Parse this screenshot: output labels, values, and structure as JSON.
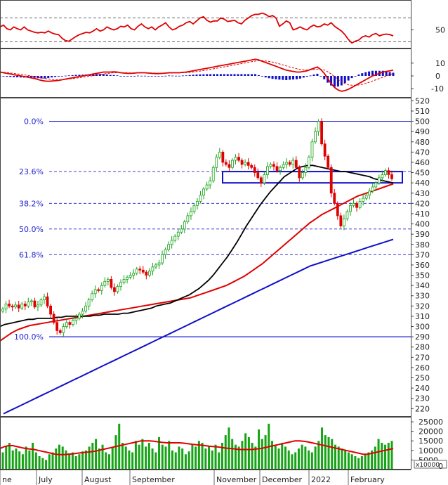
{
  "colors": {
    "up": "#16a316",
    "down": "#e00000",
    "ma_short": "#000000",
    "ma_mid": "#e00000",
    "ma_long": "#1010c8",
    "fib": "#1f1fd0",
    "box": "#1010c8",
    "rsi": "#e00000",
    "macd": "#e00000",
    "macd_signal": "#e00000",
    "histogram": "#1010c8",
    "volume": "#16a316",
    "volume_ma": "#e00000"
  },
  "chart_data": [
    {
      "type": "line",
      "panel": "rsi",
      "y_tick_labels": [
        "50"
      ],
      "guide_levels": [
        30,
        70
      ],
      "series": [
        {
          "values": [
            55,
            58,
            52,
            50,
            55,
            52,
            50,
            55,
            50,
            48,
            46,
            45,
            46,
            45,
            48,
            45,
            43,
            42,
            36,
            32,
            31,
            35,
            39,
            42,
            44,
            46,
            45,
            48,
            52,
            48,
            50,
            55,
            52,
            50,
            52,
            56,
            55,
            58,
            52,
            50,
            56,
            60,
            55,
            52,
            55,
            50,
            55,
            58,
            62,
            55,
            50,
            52,
            56,
            58,
            62,
            64,
            60,
            65,
            70,
            72,
            66,
            63,
            65,
            65,
            70,
            68,
            64,
            65,
            66,
            62,
            60,
            66,
            70,
            74,
            76,
            76,
            78,
            76,
            72,
            74,
            70,
            56,
            60,
            65,
            62,
            50,
            52,
            55,
            52,
            50,
            55,
            58,
            55,
            56,
            60,
            58,
            62,
            56,
            52,
            48,
            42,
            34,
            28,
            31,
            33,
            38,
            40,
            38,
            42,
            44,
            40,
            42,
            43,
            42,
            40
          ]
        }
      ]
    },
    {
      "type": "line",
      "panel": "macd",
      "y_tick_labels": [
        "10",
        "0",
        "-10"
      ],
      "series": [
        {
          "values": [
            3.0,
            2.5,
            2.0,
            1.5,
            1.0,
            0.5,
            0.0,
            -0.5,
            -1.0,
            -1.5,
            -2.0,
            -2.8,
            -3.5,
            -4.0,
            -4.2,
            -4.0,
            -3.8,
            -3.5,
            -3.0,
            -2.5,
            -2.0,
            -1.5,
            -1.0,
            -0.5,
            0.0,
            0.5,
            1.0,
            1.5,
            2.0,
            2.5,
            3.0,
            3.0,
            3.0,
            3.2,
            3.0,
            2.5,
            2.2,
            2.0,
            2.0,
            2.2,
            2.5,
            2.5,
            2.5,
            2.2,
            2.0,
            1.8,
            1.8,
            2.0,
            2.2,
            2.5,
            2.5,
            2.5,
            2.5,
            2.8,
            3.0,
            3.5,
            4.0,
            4.5,
            5.0,
            5.5,
            6.0,
            6.5,
            7.0,
            7.5,
            8.0,
            8.5,
            9.0,
            9.5,
            10.0,
            10.5,
            11.0,
            11.5,
            12.0,
            12.5,
            13.0,
            12.5,
            11.5,
            10.5,
            9.5,
            8.5,
            7.5,
            6.5,
            5.5,
            4.5,
            4.0,
            3.5,
            3.0,
            3.0,
            3.5,
            4.0,
            5.0,
            6.0,
            7.0,
            5.0,
            2.0,
            -2.0,
            -6.0,
            -9.0,
            -11.0,
            -12.0,
            -11.5,
            -10.5,
            -9.0,
            -7.5,
            -6.0,
            -4.5,
            -3.0,
            -1.5,
            0.0,
            1.0,
            2.0,
            3.0,
            3.5,
            4.0,
            4.5
          ]
        },
        {
          "values": [
            3.2,
            2.9,
            2.6,
            2.3,
            2.0,
            1.6,
            1.2,
            0.8,
            0.4,
            0.0,
            -0.5,
            -1.0,
            -1.5,
            -2.0,
            -2.5,
            -2.8,
            -3.0,
            -3.0,
            -2.9,
            -2.7,
            -2.4,
            -2.1,
            -1.8,
            -1.4,
            -1.0,
            -0.6,
            -0.2,
            0.2,
            0.6,
            1.0,
            1.5,
            1.9,
            2.2,
            2.5,
            2.6,
            2.6,
            2.5,
            2.4,
            2.3,
            2.3,
            2.3,
            2.4,
            2.4,
            2.4,
            2.3,
            2.2,
            2.1,
            2.1,
            2.1,
            2.2,
            2.3,
            2.4,
            2.4,
            2.5,
            2.6,
            2.8,
            3.1,
            3.4,
            3.8,
            4.2,
            4.6,
            5.1,
            5.6,
            6.1,
            6.6,
            7.1,
            7.6,
            8.1,
            8.6,
            9.1,
            9.6,
            10.1,
            10.6,
            11.1,
            11.6,
            11.9,
            11.9,
            11.7,
            11.3,
            10.8,
            10.1,
            9.4,
            8.6,
            7.8,
            7.0,
            6.3,
            5.6,
            5.1,
            4.8,
            4.6,
            4.7,
            4.9,
            5.3,
            5.2,
            4.6,
            3.3,
            1.5,
            -0.6,
            -2.7,
            -4.6,
            -6.0,
            -6.9,
            -7.3,
            -7.4,
            -7.1,
            -6.6,
            -5.9,
            -5.0,
            -4.0,
            -3.0,
            -2.0,
            -1.0,
            0.0,
            1.0,
            2.0
          ]
        }
      ],
      "histogram": [
        -0.2,
        -0.4,
        -0.6,
        -0.8,
        -1.0,
        -1.1,
        -1.2,
        -1.3,
        -1.4,
        -1.5,
        -1.5,
        -1.8,
        -2.0,
        -2.0,
        -1.7,
        -1.2,
        -0.8,
        -0.5,
        -0.1,
        0.2,
        0.4,
        0.6,
        0.8,
        0.9,
        1.0,
        1.1,
        1.2,
        1.3,
        1.4,
        1.5,
        1.5,
        1.1,
        0.8,
        0.7,
        0.4,
        -0.1,
        -0.3,
        -0.4,
        -0.3,
        -0.1,
        0.2,
        0.1,
        0.1,
        -0.2,
        -0.3,
        -0.4,
        -0.3,
        -0.1,
        0.1,
        0.3,
        0.2,
        0.1,
        0.1,
        0.3,
        0.4,
        0.7,
        0.9,
        1.1,
        1.2,
        1.3,
        1.4,
        1.4,
        1.4,
        1.4,
        1.4,
        1.4,
        1.4,
        1.4,
        1.4,
        1.4,
        1.4,
        1.4,
        1.4,
        1.4,
        1.4,
        0.6,
        -0.4,
        -1.2,
        -1.8,
        -2.3,
        -2.6,
        -2.9,
        -3.1,
        -3.3,
        -3.0,
        -2.8,
        -2.6,
        -2.1,
        -1.3,
        -0.6,
        0.3,
        1.1,
        1.7,
        -0.2,
        -2.6,
        -5.3,
        -7.5,
        -8.4,
        -8.3,
        -7.4,
        -5.5,
        -3.6,
        -1.7,
        -0.1,
        1.1,
        2.1,
        2.9,
        3.5,
        4.0,
        4.0,
        4.0,
        4.0,
        3.5,
        3.0,
        2.5
      ]
    },
    {
      "type": "candlestick",
      "panel": "price",
      "y_tick_labels": [
        "520",
        "510",
        "500",
        "490",
        "480",
        "470",
        "460",
        "450",
        "440",
        "430",
        "420",
        "410",
        "400",
        "390",
        "380",
        "370",
        "360",
        "350",
        "340",
        "330",
        "320",
        "310",
        "300",
        "290",
        "280",
        "270",
        "260",
        "250",
        "240",
        "230",
        "220"
      ],
      "ylim": [
        212,
        523
      ],
      "x_tick_labels": [
        "ne",
        "July",
        "August",
        "September",
        "November",
        "December",
        "2022",
        "February"
      ],
      "fibonacci": [
        {
          "label": "0.0%",
          "value": 500
        },
        {
          "label": "23.6%",
          "value": 451
        },
        {
          "label": "38.2%",
          "value": 420
        },
        {
          "label": "50.0%",
          "value": 395
        },
        {
          "label": "61.8%",
          "value": 370
        },
        {
          "label": "100.0%",
          "value": 290
        }
      ],
      "box": {
        "top": 451,
        "bottom": 440
      },
      "close": [
        317,
        322,
        320,
        319,
        321,
        318,
        322,
        320,
        324,
        325,
        319,
        321,
        326,
        329,
        320,
        312,
        304,
        296,
        294,
        300,
        304,
        302,
        306,
        308,
        312,
        315,
        320,
        326,
        332,
        336,
        335,
        340,
        344,
        346,
        338,
        334,
        339,
        343,
        346,
        348,
        350,
        352,
        356,
        355,
        353,
        350,
        354,
        358,
        360,
        362,
        370,
        375,
        380,
        384,
        388,
        392,
        395,
        402,
        408,
        412,
        418,
        422,
        428,
        434,
        438,
        442,
        455,
        465,
        470,
        460,
        458,
        455,
        462,
        465,
        462,
        458,
        460,
        457,
        455,
        450,
        445,
        440,
        448,
        456,
        458,
        456,
        452,
        455,
        458,
        460,
        458,
        462,
        455,
        445,
        450,
        455,
        465,
        480,
        490,
        500,
        478,
        466,
        455,
        430,
        420,
        408,
        398,
        405,
        412,
        418,
        420,
        416,
        422,
        425,
        428,
        432,
        436,
        440,
        445,
        448,
        452,
        448,
        444
      ],
      "ma_short": [
        300,
        302,
        303,
        304,
        305,
        306,
        307,
        307,
        308,
        308,
        308,
        308,
        309,
        309,
        310,
        310,
        310,
        310,
        310,
        310,
        311,
        311,
        312,
        312,
        312,
        312,
        313,
        313,
        314,
        315,
        316,
        317,
        318,
        320,
        321,
        322,
        323,
        325,
        327,
        329,
        331,
        334,
        337,
        341,
        345,
        350,
        356,
        362,
        368,
        375,
        382,
        390,
        398,
        405,
        412,
        419,
        425,
        431,
        436,
        441,
        446,
        449,
        452,
        455,
        456,
        457,
        457,
        456,
        455,
        454,
        453,
        452,
        451,
        451,
        450,
        449,
        448,
        447,
        446,
        444,
        443,
        442,
        441,
        440
      ],
      "ma_mid": [
        286,
        290,
        294,
        297,
        299,
        301,
        302,
        303,
        304,
        305,
        306,
        307,
        308,
        309,
        310,
        311,
        312,
        313,
        314,
        315,
        316,
        317,
        318,
        319,
        320,
        321,
        322,
        323,
        324,
        325,
        326,
        327,
        328,
        330,
        332,
        334,
        336,
        338,
        340,
        343,
        346,
        349,
        353,
        357,
        361,
        366,
        371,
        376,
        381,
        386,
        391,
        396,
        401,
        405,
        409,
        412,
        415,
        418,
        421,
        424,
        427,
        429,
        431,
        433,
        435,
        437,
        439
      ],
      "ma_long": [
        215,
        218,
        221,
        224,
        227,
        230,
        233,
        236,
        239,
        242,
        245,
        248,
        251,
        254,
        257,
        260,
        263,
        266,
        269,
        272,
        275,
        278,
        281,
        284,
        287,
        290,
        293,
        296,
        299,
        302,
        305,
        308,
        311,
        314,
        317,
        320,
        323,
        326,
        329,
        332,
        335,
        338,
        341,
        344,
        347,
        350,
        353,
        356,
        359,
        361,
        363,
        365,
        367,
        369,
        371,
        373,
        375,
        377,
        379,
        381,
        383,
        385
      ]
    },
    {
      "type": "bar",
      "panel": "volume",
      "y_tick_labels": [
        "25000",
        "20000",
        "15000",
        "10000",
        "5000",
        "0"
      ],
      "unit_label": "x10000",
      "ylim": [
        0,
        26500
      ],
      "values": [
        9000,
        12000,
        14000,
        10000,
        11000,
        9500,
        8000,
        12000,
        10000,
        14000,
        9000,
        7000,
        6000,
        5000,
        8000,
        9000,
        11000,
        13000,
        12000,
        10000,
        8500,
        9000,
        7000,
        8000,
        9500,
        10000,
        12000,
        14000,
        16000,
        11000,
        13000,
        9000,
        8000,
        12000,
        18000,
        24000,
        14000,
        12000,
        10000,
        9000,
        15000,
        13000,
        16000,
        12000,
        14000,
        11000,
        9000,
        17000,
        13000,
        12000,
        15000,
        10000,
        9000,
        12000,
        11000,
        8000,
        9500,
        13000,
        12000,
        15000,
        14000,
        11000,
        12000,
        10000,
        13000,
        9000,
        14000,
        18000,
        22000,
        16000,
        13000,
        12000,
        15000,
        19000,
        17000,
        14000,
        12000,
        21000,
        16000,
        18000,
        24000,
        15000,
        13000,
        11000,
        14000,
        12000,
        10000,
        8000,
        9000,
        11000,
        13000,
        12000,
        10000,
        9000,
        12000,
        15000,
        22000,
        18000,
        17000,
        16000,
        13000,
        12000,
        11000,
        10000,
        9000,
        8000,
        7000,
        6000,
        7000,
        8000,
        9000,
        10000,
        12000,
        16000,
        14000,
        13000,
        14000,
        15000
      ],
      "ma": [
        11000,
        12000,
        12500,
        12500,
        12000,
        11500,
        11000,
        10800,
        10500,
        10000,
        9500,
        9000,
        8500,
        8000,
        7800,
        7800,
        8000,
        8200,
        8500,
        8800,
        9000,
        9200,
        9500,
        10000,
        10500,
        11000,
        11500,
        12000,
        12500,
        13000,
        13500,
        14000,
        14500,
        15000,
        15000,
        15000,
        14800,
        14500,
        14200,
        14000,
        14000,
        14000,
        14000,
        13800,
        13500,
        13200,
        13000,
        12800,
        12500,
        12200,
        12000,
        11800,
        11500,
        11200,
        11000,
        10800,
        10500,
        10500,
        10500,
        10500,
        10800,
        11000,
        11500,
        12000,
        12500,
        13000,
        13500,
        14000,
        14500,
        15000,
        15000,
        14800,
        14500,
        14000,
        13500,
        13000,
        12500,
        12000,
        11500,
        11000,
        10500,
        10000,
        9500,
        9000,
        8500,
        8000,
        8000,
        8500,
        9000,
        9500,
        10000,
        10500,
        11000
      ]
    }
  ]
}
